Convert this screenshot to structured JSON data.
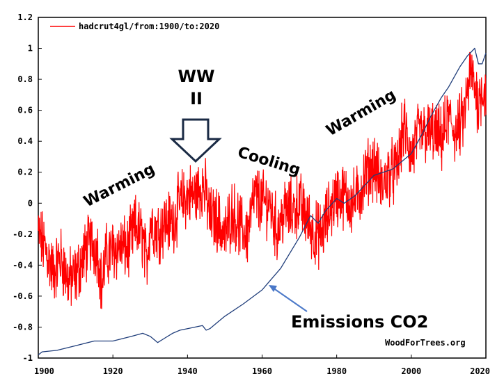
{
  "chart_data": {
    "type": "line",
    "title": "",
    "xlabel": "",
    "ylabel": "",
    "xlim": [
      1900,
      2020
    ],
    "ylim": [
      -1,
      1.2
    ],
    "grid": false,
    "legend_position": "top-left",
    "x_ticks": [
      "1900",
      "1920",
      "1940",
      "1960",
      "1980",
      "2000",
      "2020"
    ],
    "y_ticks": [
      "-1",
      "-0.8",
      "-0.6",
      "-0.4",
      "-0.2",
      "0",
      "0.2",
      "0.4",
      "0.6",
      "0.8",
      "1",
      "1.2"
    ],
    "series": [
      {
        "name": "hadcrut4gl/from:1900/to:2020",
        "color": "#ff0000",
        "note_kind": "monthly temperature anomaly",
        "x": [
          1900,
          1902,
          1904,
          1906,
          1908,
          1910,
          1912,
          1914,
          1916,
          1917,
          1918,
          1920,
          1922,
          1924,
          1926,
          1928,
          1929,
          1930,
          1932,
          1934,
          1936,
          1938,
          1940,
          1942,
          1944,
          1945,
          1946,
          1948,
          1950,
          1952,
          1954,
          1956,
          1958,
          1960,
          1962,
          1964,
          1966,
          1968,
          1970,
          1972,
          1974,
          1976,
          1978,
          1980,
          1982,
          1984,
          1986,
          1988,
          1990,
          1992,
          1994,
          1996,
          1998,
          2000,
          2002,
          2004,
          2006,
          2008,
          2010,
          2012,
          2014,
          2016,
          2017,
          2018,
          2019,
          2020
        ],
        "y": [
          -0.2,
          -0.3,
          -0.45,
          -0.35,
          -0.5,
          -0.48,
          -0.35,
          -0.25,
          -0.3,
          -0.55,
          -0.35,
          -0.3,
          -0.28,
          -0.3,
          -0.15,
          -0.22,
          -0.4,
          -0.12,
          -0.18,
          -0.12,
          -0.12,
          0.0,
          0.05,
          0.05,
          0.12,
          0.05,
          -0.1,
          -0.1,
          -0.22,
          -0.05,
          -0.15,
          -0.2,
          0.05,
          0.0,
          0.0,
          -0.18,
          -0.05,
          -0.05,
          0.0,
          -0.1,
          -0.2,
          -0.2,
          -0.05,
          0.05,
          0.05,
          0.0,
          0.05,
          0.2,
          0.25,
          0.1,
          0.2,
          0.2,
          0.5,
          0.3,
          0.45,
          0.45,
          0.45,
          0.4,
          0.55,
          0.45,
          0.55,
          0.85,
          0.75,
          0.65,
          0.75,
          0.7
        ]
      },
      {
        "name": "Emissions CO2",
        "color": "#1f3d7a",
        "x": [
          1900,
          1901,
          1905,
          1910,
          1915,
          1920,
          1925,
          1928,
          1930,
          1932,
          1934,
          1936,
          1938,
          1940,
          1942,
          1944,
          1945,
          1946,
          1948,
          1950,
          1955,
          1960,
          1965,
          1970,
          1973,
          1975,
          1977,
          1980,
          1982,
          1985,
          1990,
          1995,
          2000,
          2003,
          2005,
          2008,
          2010,
          2013,
          2015,
          2017,
          2018,
          2019,
          2020
        ],
        "y": [
          -0.98,
          -0.96,
          -0.95,
          -0.92,
          -0.89,
          -0.89,
          -0.86,
          -0.84,
          -0.86,
          -0.9,
          -0.87,
          -0.84,
          -0.82,
          -0.81,
          -0.8,
          -0.79,
          -0.82,
          -0.81,
          -0.77,
          -0.73,
          -0.65,
          -0.56,
          -0.42,
          -0.22,
          -0.08,
          -0.13,
          -0.05,
          0.03,
          0.0,
          0.05,
          0.18,
          0.22,
          0.32,
          0.45,
          0.55,
          0.68,
          0.75,
          0.88,
          0.95,
          1.0,
          0.9,
          0.9,
          0.97
        ]
      }
    ],
    "annotations": [
      {
        "text": "Warming",
        "position": "left"
      },
      {
        "text": "WW",
        "position": "top"
      },
      {
        "text": "II",
        "position": "top"
      },
      {
        "text": "Cooling",
        "position": "center"
      },
      {
        "text": "Warming",
        "position": "right"
      },
      {
        "text": "Emissions CO2",
        "position": "bottom-right"
      },
      {
        "text": "WoodForTrees.org",
        "position": "bottom-right"
      }
    ]
  }
}
